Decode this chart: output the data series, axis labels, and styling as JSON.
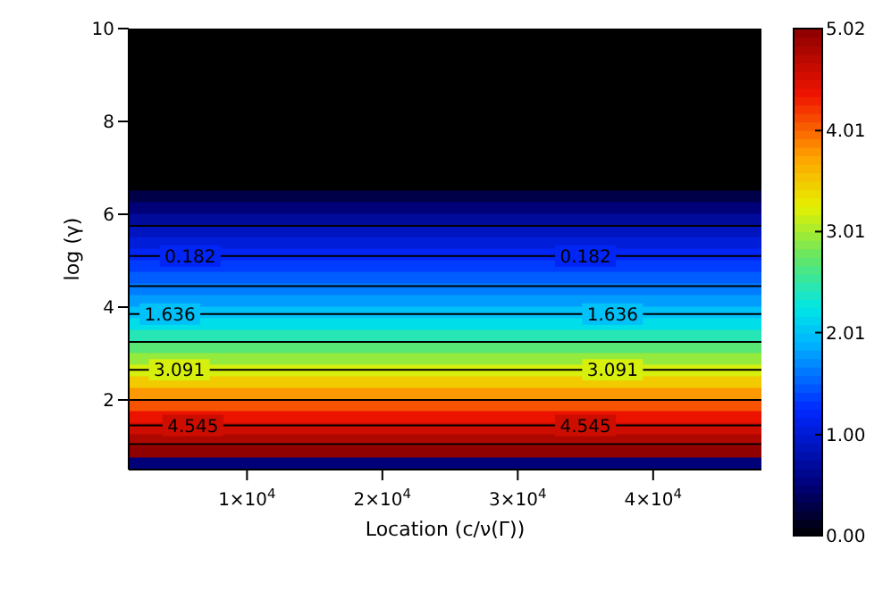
{
  "chart_data": {
    "type": "heatmap",
    "xlabel": "Location  (c/ν(Γ))",
    "ylabel": "log (γ)",
    "xlim": [
      1260,
      48000
    ],
    "ylim": [
      0.5,
      10
    ],
    "xticks": [
      {
        "value": 10000,
        "label": "1×10$^{4}$"
      },
      {
        "value": 20000,
        "label": "2×10$^{4}$"
      },
      {
        "value": 30000,
        "label": "3×10$^{4}$"
      },
      {
        "value": 40000,
        "label": "4×10$^{4}$"
      }
    ],
    "yticks": [
      2,
      4,
      6,
      8,
      10
    ],
    "clim": [
      0,
      5.02
    ],
    "cticks": [
      {
        "value": 0,
        "label": "0.00"
      },
      {
        "value": 1,
        "label": "1.00"
      },
      2.01,
      3.01,
      4.01,
      5.02
    ],
    "cells": [
      [
        0
      ],
      [
        0
      ],
      [
        0
      ],
      [
        0
      ],
      [
        0
      ],
      [
        0
      ],
      [
        0
      ],
      [
        0
      ],
      [
        0
      ],
      [
        0
      ],
      [
        0
      ],
      [
        0
      ],
      [
        0
      ],
      [
        0
      ],
      [
        0.3
      ],
      [
        0.5
      ],
      [
        0.7
      ],
      [
        0.9
      ],
      [
        1.05
      ],
      [
        1.2
      ],
      [
        1.35
      ],
      [
        1.5
      ],
      [
        1.65
      ],
      [
        1.8
      ],
      [
        2.0
      ],
      [
        2.2
      ],
      [
        2.45
      ],
      [
        2.7
      ],
      [
        2.95
      ],
      [
        3.2
      ],
      [
        3.5
      ],
      [
        3.8
      ],
      [
        4.1
      ],
      [
        4.4
      ],
      [
        4.6
      ],
      [
        4.8
      ],
      [
        5.0
      ],
      [
        0.5
      ]
    ],
    "ref_lines": [
      {
        "axis": "y",
        "value": 5.75,
        "color": "#000000"
      },
      {
        "axis": "y",
        "value": 5.1,
        "color": "#000000"
      },
      {
        "axis": "y",
        "value": 4.45,
        "color": "#000000"
      },
      {
        "axis": "y",
        "value": 3.85,
        "color": "#000000"
      },
      {
        "axis": "y",
        "value": 3.25,
        "color": "#000000"
      },
      {
        "axis": "y",
        "value": 2.65,
        "color": "#000000"
      },
      {
        "axis": "y",
        "value": 2.0,
        "color": "#000000"
      },
      {
        "axis": "y",
        "value": 1.45,
        "color": "#000000"
      },
      {
        "axis": "y",
        "value": 1.05,
        "color": "#000000"
      }
    ],
    "annotations": [
      {
        "text": "0.182",
        "x": 5800,
        "y": 5.1
      },
      {
        "text": "0.182",
        "x": 35000,
        "y": 5.1
      },
      {
        "text": "1.636",
        "x": 4300,
        "y": 3.85
      },
      {
        "text": "1.636",
        "x": 37000,
        "y": 3.85
      },
      {
        "text": "3.091",
        "x": 5000,
        "y": 2.65
      },
      {
        "text": "3.091",
        "x": 37000,
        "y": 2.65
      },
      {
        "text": "4.545",
        "x": 6000,
        "y": 1.45
      },
      {
        "text": "4.545",
        "x": 35000,
        "y": 1.45
      }
    ]
  }
}
